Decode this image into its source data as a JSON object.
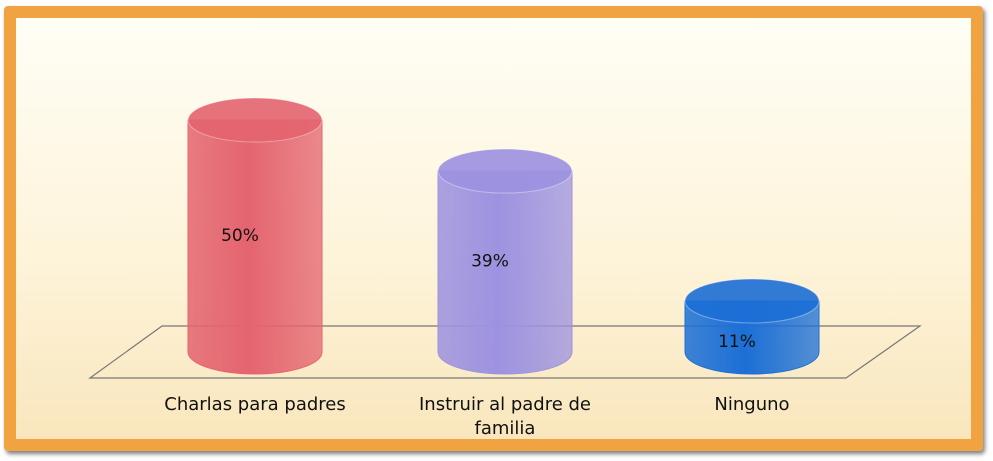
{
  "chart_data": {
    "type": "bar",
    "categories": [
      "Charlas para padres",
      "Instruir al padre de familia",
      "Ninguno"
    ],
    "values": [
      50,
      39,
      11
    ],
    "value_labels": [
      "50%",
      "39%",
      "11%"
    ],
    "colors": [
      "#e4646f",
      "#9d92e0",
      "#1c6fd6"
    ]
  }
}
